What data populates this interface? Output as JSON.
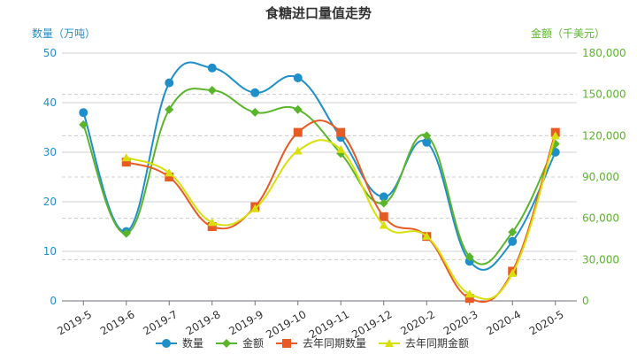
{
  "chart_data": {
    "type": "line",
    "title": "食糖进口量值走势",
    "y_left_label": "数量（万吨）",
    "y_right_label": "金额（千美元）",
    "ylim_left": [
      0,
      50
    ],
    "ylim_right": [
      0,
      180000
    ],
    "y_left_ticks": [
      "0",
      "10",
      "20",
      "30",
      "40",
      "50"
    ],
    "y_right_ticks": [
      "0",
      "30,000",
      "60,000",
      "90,000",
      "120,000",
      "150,000",
      "180,000"
    ],
    "categories": [
      "2019-5",
      "2019-6",
      "2019-7",
      "2019-8",
      "2019-9",
      "2019-10",
      "2019-11",
      "2019-12",
      "2020-2",
      "2020-3",
      "2020-4",
      "2020-5"
    ],
    "series": [
      {
        "name": "数量",
        "axis": "left",
        "color": "#1f8fc9",
        "marker": "circle",
        "values": [
          38,
          14,
          44,
          47,
          42,
          45,
          33,
          21,
          32,
          8,
          12,
          30
        ]
      },
      {
        "name": "金额",
        "axis": "right",
        "color": "#5ab52a",
        "marker": "diamond",
        "values": [
          128000,
          49000,
          139000,
          153000,
          137000,
          139000,
          107000,
          71000,
          120000,
          32000,
          50000,
          114000
        ]
      },
      {
        "name": "去年同期数量",
        "axis": "left",
        "color": "#e85a24",
        "marker": "square",
        "values": [
          null,
          28,
          25,
          15,
          19,
          34,
          34,
          17,
          13,
          0.5,
          6,
          34
        ]
      },
      {
        "name": "去年同期金额",
        "axis": "right",
        "color": "#d8df0a",
        "marker": "triangle",
        "values": [
          null,
          104000,
          93000,
          57000,
          67000,
          109000,
          110000,
          55000,
          47000,
          5000,
          20000,
          120000
        ]
      }
    ],
    "legend_position": "bottom",
    "grid": true
  }
}
